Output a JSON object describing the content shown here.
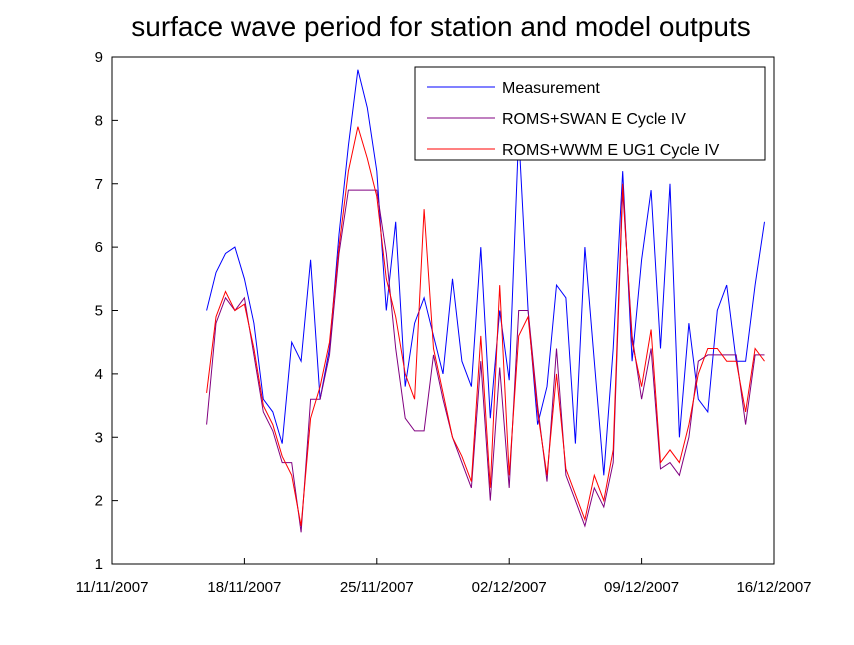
{
  "chart_data": {
    "type": "line",
    "title": "surface wave period for station and model outputs",
    "xlabel": "",
    "ylabel": "",
    "xlim": [
      "2007-11-11",
      "2007-12-16"
    ],
    "ylim": [
      1,
      9
    ],
    "x_ticks": [
      "11/11/2007",
      "18/11/2007",
      "25/11/2007",
      "02/12/2007",
      "09/12/2007",
      "16/12/2007"
    ],
    "y_ticks": [
      "1",
      "2",
      "3",
      "4",
      "5",
      "6",
      "7",
      "8",
      "9"
    ],
    "grid": false,
    "legend_position": "top-right",
    "x_format": "dd/mm/yyyy",
    "series": [
      {
        "name": "Measurement",
        "color": "#0000ff",
        "x": [
          "2007-11-16",
          "2007-11-16T12:00",
          "2007-11-17",
          "2007-11-17T12:00",
          "2007-11-18",
          "2007-11-18T12:00",
          "2007-11-19",
          "2007-11-19T12:00",
          "2007-11-20",
          "2007-11-20T12:00",
          "2007-11-21",
          "2007-11-21T12:00",
          "2007-11-22",
          "2007-11-22T12:00",
          "2007-11-23",
          "2007-11-23T12:00",
          "2007-11-24",
          "2007-11-24T12:00",
          "2007-11-25",
          "2007-11-25T12:00",
          "2007-11-26",
          "2007-11-26T12:00",
          "2007-11-27",
          "2007-11-27T12:00",
          "2007-11-28",
          "2007-11-28T12:00",
          "2007-11-29",
          "2007-11-29T12:00",
          "2007-11-30",
          "2007-11-30T12:00",
          "2007-12-01",
          "2007-12-01T12:00",
          "2007-12-02",
          "2007-12-02T12:00",
          "2007-12-03",
          "2007-12-03T12:00",
          "2007-12-04",
          "2007-12-04T12:00",
          "2007-12-05",
          "2007-12-05T12:00",
          "2007-12-06",
          "2007-12-06T12:00",
          "2007-12-07",
          "2007-12-07T12:00",
          "2007-12-08",
          "2007-12-08T12:00",
          "2007-12-09",
          "2007-12-09T12:00",
          "2007-12-10",
          "2007-12-10T12:00",
          "2007-12-11",
          "2007-12-11T12:00",
          "2007-12-12",
          "2007-12-12T12:00",
          "2007-12-13",
          "2007-12-13T12:00",
          "2007-12-14",
          "2007-12-14T12:00",
          "2007-12-15",
          "2007-12-15T12:00"
        ],
        "y": [
          5.0,
          5.6,
          5.9,
          6.0,
          5.5,
          4.8,
          3.6,
          3.4,
          2.9,
          4.5,
          4.2,
          5.8,
          3.6,
          4.4,
          6.2,
          7.6,
          8.8,
          8.2,
          7.2,
          5.0,
          6.4,
          3.8,
          4.8,
          5.2,
          4.6,
          4.0,
          5.5,
          4.2,
          3.8,
          6.0,
          3.3,
          5.0,
          3.9,
          7.8,
          5.0,
          3.2,
          3.8,
          5.4,
          5.2,
          2.9,
          6.0,
          4.2,
          2.4,
          4.4,
          7.2,
          4.2,
          5.8,
          6.9,
          4.4,
          7.0,
          3.0,
          4.8,
          3.6,
          3.4,
          5.0,
          5.4,
          4.2,
          4.2,
          5.4,
          6.4
        ]
      },
      {
        "name": "ROMS+SWAN E Cycle IV",
        "color": "#800080",
        "x": [
          "2007-11-16",
          "2007-11-16T12:00",
          "2007-11-17",
          "2007-11-17T12:00",
          "2007-11-18",
          "2007-11-18T12:00",
          "2007-11-19",
          "2007-11-19T12:00",
          "2007-11-20",
          "2007-11-20T12:00",
          "2007-11-21",
          "2007-11-21T12:00",
          "2007-11-22",
          "2007-11-22T12:00",
          "2007-11-23",
          "2007-11-23T12:00",
          "2007-11-24",
          "2007-11-24T12:00",
          "2007-11-25",
          "2007-11-25T12:00",
          "2007-11-26",
          "2007-11-26T12:00",
          "2007-11-27",
          "2007-11-27T12:00",
          "2007-11-28",
          "2007-11-28T12:00",
          "2007-11-29",
          "2007-11-29T12:00",
          "2007-11-30",
          "2007-11-30T12:00",
          "2007-12-01",
          "2007-12-01T12:00",
          "2007-12-02",
          "2007-12-02T12:00",
          "2007-12-03",
          "2007-12-03T12:00",
          "2007-12-04",
          "2007-12-04T12:00",
          "2007-12-05",
          "2007-12-05T12:00",
          "2007-12-06",
          "2007-12-06T12:00",
          "2007-12-07",
          "2007-12-07T12:00",
          "2007-12-08",
          "2007-12-08T12:00",
          "2007-12-09",
          "2007-12-09T12:00",
          "2007-12-10",
          "2007-12-10T12:00",
          "2007-12-11",
          "2007-12-11T12:00",
          "2007-12-12",
          "2007-12-12T12:00",
          "2007-12-13",
          "2007-12-13T12:00",
          "2007-12-14",
          "2007-12-14T12:00",
          "2007-12-15",
          "2007-12-15T12:00"
        ],
        "y": [
          3.2,
          4.8,
          5.2,
          5.0,
          5.2,
          4.3,
          3.4,
          3.1,
          2.6,
          2.6,
          1.5,
          3.6,
          3.6,
          4.3,
          5.9,
          6.9,
          6.9,
          6.9,
          6.9,
          5.9,
          4.4,
          3.3,
          3.1,
          3.1,
          4.3,
          3.6,
          3.0,
          2.6,
          2.2,
          4.2,
          2.0,
          4.1,
          2.2,
          5.0,
          5.0,
          3.5,
          2.3,
          4.4,
          2.4,
          2.0,
          1.6,
          2.2,
          1.9,
          2.6,
          6.9,
          4.6,
          3.6,
          4.4,
          2.5,
          2.6,
          2.4,
          3.0,
          4.2,
          4.3,
          4.3,
          4.3,
          4.3,
          3.2,
          4.3,
          4.3
        ]
      },
      {
        "name": "ROMS+WWM E UG1 Cycle IV",
        "color": "#ff0000",
        "x": [
          "2007-11-16",
          "2007-11-16T12:00",
          "2007-11-17",
          "2007-11-17T12:00",
          "2007-11-18",
          "2007-11-18T12:00",
          "2007-11-19",
          "2007-11-19T12:00",
          "2007-11-20",
          "2007-11-20T12:00",
          "2007-11-21",
          "2007-11-21T12:00",
          "2007-11-22",
          "2007-11-22T12:00",
          "2007-11-23",
          "2007-11-23T12:00",
          "2007-11-24",
          "2007-11-24T12:00",
          "2007-11-25",
          "2007-11-25T12:00",
          "2007-11-26",
          "2007-11-26T12:00",
          "2007-11-27",
          "2007-11-27T12:00",
          "2007-11-28",
          "2007-11-28T12:00",
          "2007-11-29",
          "2007-11-29T12:00",
          "2007-11-30",
          "2007-11-30T12:00",
          "2007-12-01",
          "2007-12-01T12:00",
          "2007-12-02",
          "2007-12-02T12:00",
          "2007-12-03",
          "2007-12-03T12:00",
          "2007-12-04",
          "2007-12-04T12:00",
          "2007-12-05",
          "2007-12-05T12:00",
          "2007-12-06",
          "2007-12-06T12:00",
          "2007-12-07",
          "2007-12-07T12:00",
          "2007-12-08",
          "2007-12-08T12:00",
          "2007-12-09",
          "2007-12-09T12:00",
          "2007-12-10",
          "2007-12-10T12:00",
          "2007-12-11",
          "2007-12-11T12:00",
          "2007-12-12",
          "2007-12-12T12:00",
          "2007-12-13",
          "2007-12-13T12:00",
          "2007-12-14",
          "2007-12-14T12:00",
          "2007-12-15",
          "2007-12-15T12:00"
        ],
        "y": [
          3.7,
          4.9,
          5.3,
          5.0,
          5.1,
          4.4,
          3.5,
          3.2,
          2.7,
          2.4,
          1.6,
          3.3,
          3.8,
          4.5,
          6.0,
          7.2,
          7.9,
          7.4,
          6.8,
          5.5,
          4.9,
          4.0,
          3.6,
          6.6,
          4.4,
          3.7,
          3.0,
          2.7,
          2.3,
          4.6,
          2.2,
          5.4,
          2.4,
          4.6,
          4.9,
          3.4,
          2.4,
          4.0,
          2.5,
          2.1,
          1.7,
          2.4,
          2.0,
          2.8,
          7.0,
          4.5,
          3.8,
          4.7,
          2.6,
          2.8,
          2.6,
          3.2,
          4.0,
          4.4,
          4.4,
          4.2,
          4.2,
          3.4,
          4.4,
          4.2
        ]
      }
    ]
  }
}
